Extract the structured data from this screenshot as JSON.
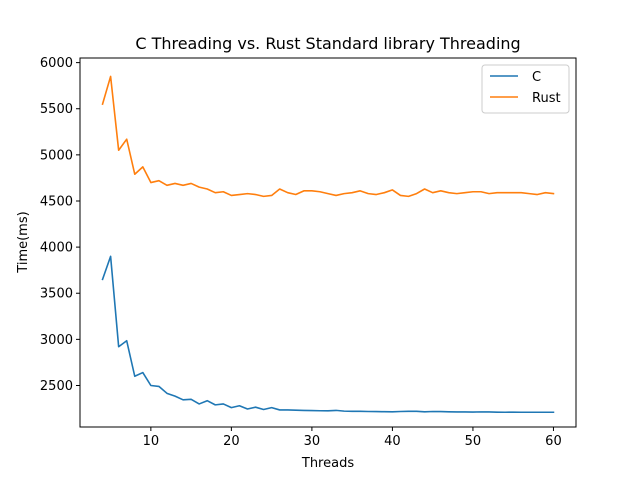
{
  "chart_data": {
    "type": "line",
    "title": "C Threading vs. Rust Standard library Threading",
    "xlabel": "Threads",
    "ylabel": "Time(ms)",
    "xlim": [
      1.2,
      62.8
    ],
    "ylim": [
      2050,
      6050
    ],
    "xticks": [
      10,
      20,
      30,
      40,
      50,
      60
    ],
    "yticks": [
      2500,
      3000,
      3500,
      4000,
      4500,
      5000,
      5500,
      6000
    ],
    "grid": false,
    "legend_position": "top-right",
    "x": [
      4,
      5,
      6,
      7,
      8,
      9,
      10,
      11,
      12,
      13,
      14,
      15,
      16,
      17,
      18,
      19,
      20,
      21,
      22,
      23,
      24,
      25,
      26,
      27,
      28,
      29,
      30,
      31,
      32,
      33,
      34,
      35,
      36,
      37,
      38,
      39,
      40,
      41,
      42,
      43,
      44,
      45,
      46,
      47,
      48,
      49,
      50,
      51,
      52,
      53,
      54,
      55,
      56,
      57,
      58,
      59,
      60
    ],
    "series": [
      {
        "name": "C",
        "color": "#1f77b4",
        "values": [
          3650,
          3900,
          2920,
          2985,
          2600,
          2640,
          2500,
          2490,
          2415,
          2385,
          2345,
          2350,
          2300,
          2335,
          2290,
          2300,
          2260,
          2280,
          2245,
          2265,
          2240,
          2260,
          2235,
          2235,
          2232,
          2230,
          2228,
          2226,
          2225,
          2230,
          2222,
          2220,
          2220,
          2218,
          2217,
          2216,
          2215,
          2218,
          2220,
          2220,
          2215,
          2218,
          2217,
          2215,
          2213,
          2213,
          2212,
          2214,
          2213,
          2211,
          2210,
          2211,
          2210,
          2210,
          2210,
          2210,
          2210
        ]
      },
      {
        "name": "Rust",
        "color": "#ff7f0e",
        "values": [
          5550,
          5850,
          5050,
          5170,
          4790,
          4870,
          4700,
          4720,
          4670,
          4690,
          4670,
          4690,
          4650,
          4630,
          4590,
          4600,
          4560,
          4570,
          4580,
          4570,
          4550,
          4560,
          4630,
          4590,
          4570,
          4610,
          4610,
          4600,
          4580,
          4560,
          4580,
          4590,
          4610,
          4580,
          4570,
          4590,
          4620,
          4560,
          4550,
          4580,
          4630,
          4590,
          4610,
          4590,
          4580,
          4590,
          4600,
          4600,
          4580,
          4590,
          4590,
          4590,
          4590,
          4580,
          4570,
          4590,
          4580
        ]
      }
    ]
  }
}
